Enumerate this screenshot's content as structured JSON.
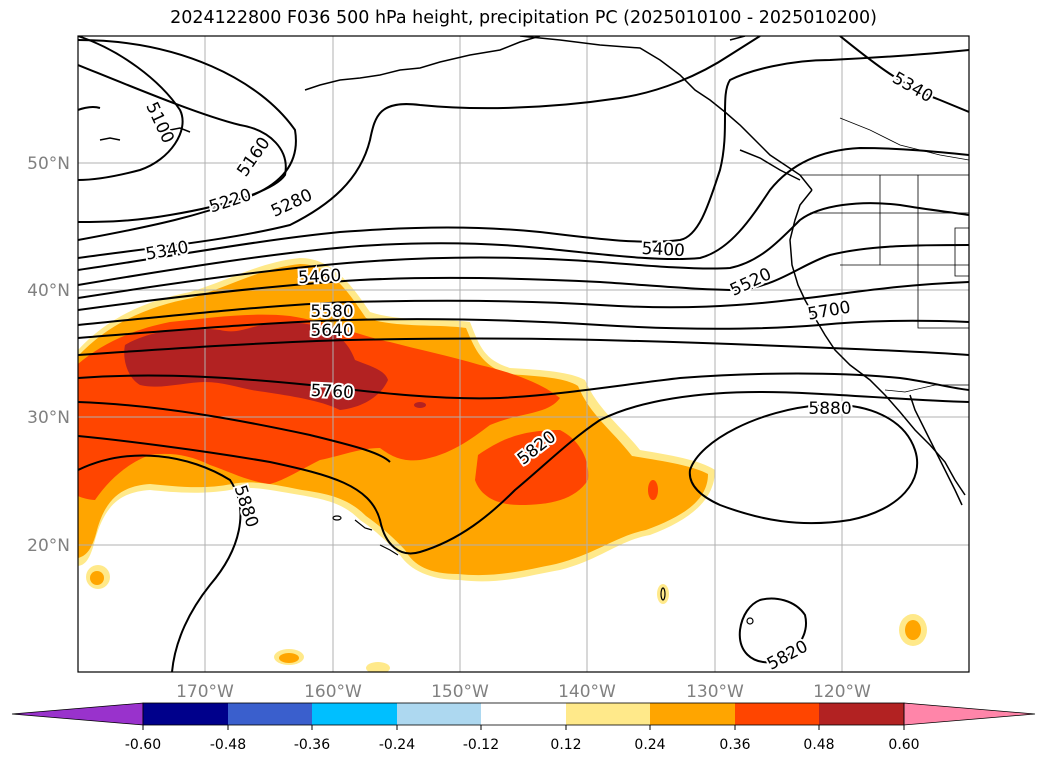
{
  "title": "2024122800 F036 500 hPa height, precipitation PC (2025010100 - 2025010200)",
  "map": {
    "lat_labels": [
      "50°N",
      "40°N",
      "30°N",
      "20°N"
    ],
    "lon_labels": [
      "170°W",
      "160°W",
      "150°W",
      "140°W",
      "130°W",
      "120°W"
    ],
    "contour_labels": [
      "5100",
      "5160",
      "5220",
      "5280",
      "5340",
      "5340",
      "5400",
      "5460",
      "5520",
      "5580",
      "5640",
      "5700",
      "5760",
      "5820",
      "5820",
      "5880",
      "5880"
    ],
    "colors": {
      "shade_012": "#ffe98a",
      "shade_024": "#ffa500",
      "shade_036": "#ff4500",
      "shade_048": "#b22222",
      "coast": "#000000",
      "grid": "#b0b0b0"
    }
  },
  "colorbar": {
    "tick_labels": [
      "-0.60",
      "-0.48",
      "-0.36",
      "-0.24",
      "-0.12",
      "0.12",
      "0.24",
      "0.36",
      "0.48",
      "0.60"
    ],
    "colors": [
      "#9932cc",
      "#00008b",
      "#3a5fcd",
      "#00bfff",
      "#add8f0",
      "#ffffff",
      "#ffe98a",
      "#ffa500",
      "#ff4500",
      "#b22222",
      "#ff85a9"
    ]
  }
}
